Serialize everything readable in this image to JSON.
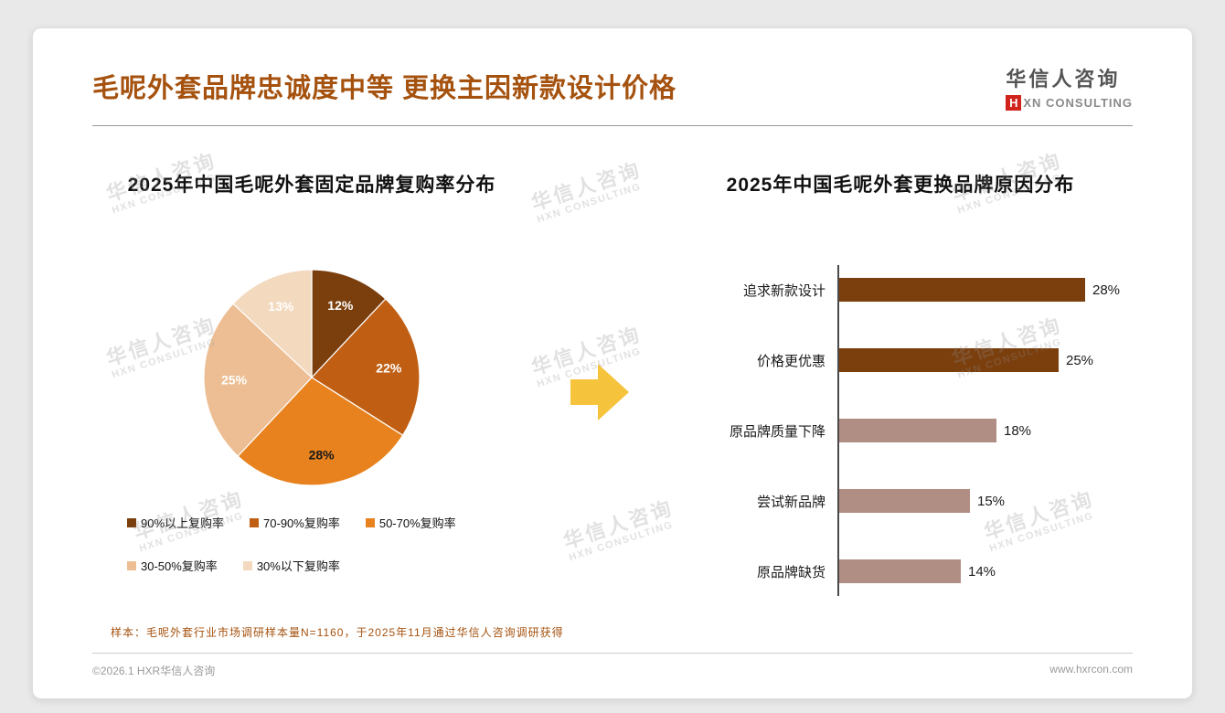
{
  "slide": {
    "title": "毛呢外套品牌忠诚度中等 更换主因新款设计价格",
    "logo": {
      "cn": "华信人咨询",
      "en_h": "H",
      "en_rest": "XN CONSULTING"
    },
    "watermark": {
      "cn": "华信人咨询",
      "en": "HXN CONSULTING"
    },
    "sample_note": "样本：毛呢外套行业市场调研样本量N=1160，于2025年11月通过华信人咨询调研获得",
    "copyright": "©2026.1 HXR华信人咨询",
    "website": "www.hxrcon.com",
    "accent_color": "#A5520F",
    "arrow_color": "#F6C33C"
  },
  "chart_data": [
    {
      "type": "pie",
      "title": "2025年中国毛呢外套固定品牌复购率分布",
      "start_angle": 0,
      "direction": "clockwise",
      "slices": [
        {
          "label": "90%以上复购率",
          "value": 12,
          "display": "12%",
          "color": "#7B3F0E",
          "label_color": "#ffffff"
        },
        {
          "label": "70-90%复购率",
          "value": 22,
          "display": "22%",
          "color": "#C05F14",
          "label_color": "#ffffff"
        },
        {
          "label": "50-70%复购率",
          "value": 28,
          "display": "28%",
          "color": "#E8821E",
          "label_color": "#1a1a1a"
        },
        {
          "label": "30-50%复购率",
          "value": 25,
          "display": "25%",
          "color": "#EDBE93",
          "label_color": "#ffffff"
        },
        {
          "label": "30%以下复购率",
          "value": 13,
          "display": "13%",
          "color": "#F3D9BE",
          "label_color": "#ffffff"
        }
      ]
    },
    {
      "type": "bar",
      "orientation": "horizontal",
      "title": "2025年中国毛呢外套更换品牌原因分布",
      "categories": [
        "追求新款设计",
        "价格更优惠",
        "原品牌质量下降",
        "尝试新品牌",
        "原品牌缺货"
      ],
      "values": [
        28,
        25,
        18,
        15,
        14
      ],
      "value_labels": [
        "28%",
        "25%",
        "18%",
        "15%",
        "14%"
      ],
      "bar_colors": [
        "#7B3F0E",
        "#7B3F0E",
        "#B18E83",
        "#B18E83",
        "#B18E83"
      ],
      "xlim": [
        0,
        30
      ],
      "grid": false,
      "legend": "none"
    }
  ]
}
